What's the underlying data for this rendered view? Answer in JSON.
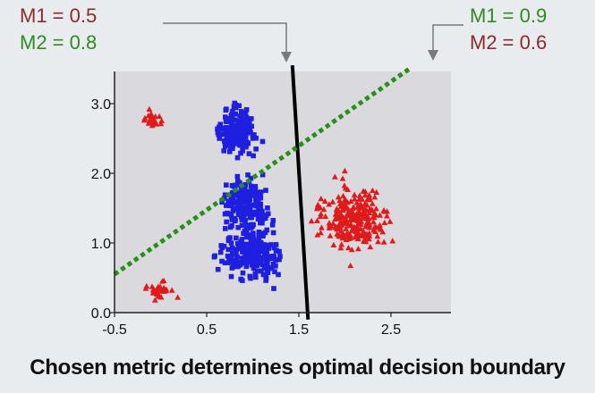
{
  "caption": "Chosen metric determines optimal decision boundary",
  "annotations": {
    "left_box": {
      "m1": "M1 = 0.5",
      "m2": "M2 = 0.8"
    },
    "right_box": {
      "m1": "M1 = 0.9",
      "m2": "M2 = 0.6"
    }
  },
  "colors": {
    "green_text": "#2e8b1f",
    "red_text": "#8b2a2a",
    "class_a": "#1f1fe0",
    "class_b": "#e01a1a",
    "boundary_solid": "#000000",
    "boundary_dotted": "#2a8f1a",
    "plot_bg": "#d9d9de"
  },
  "chart_data": {
    "type": "scatter",
    "title": "",
    "xlabel": "",
    "ylabel": "",
    "xlim": [
      -0.5,
      3.0
    ],
    "ylim": [
      0.0,
      3.3
    ],
    "x_ticks": [
      -0.5,
      0.5,
      1.5,
      2.5
    ],
    "x_tick_labels": [
      "-0.5",
      "0.5",
      "1.5",
      "2.5"
    ],
    "y_ticks": [
      0.0,
      1.0,
      2.0,
      3.0
    ],
    "y_tick_labels": [
      "0.0",
      "1.0",
      "2.0",
      "3.0"
    ],
    "grid": false,
    "series": [
      {
        "marker": "square",
        "color": "#1f1fe0",
        "clusters": [
          {
            "center": [
              0.83,
              2.6
            ],
            "spread": [
              0.17,
              0.25
            ],
            "count": 180
          },
          {
            "center": [
              0.92,
              1.55
            ],
            "spread": [
              0.2,
              0.3
            ],
            "count": 200
          },
          {
            "center": [
              1.0,
              0.85
            ],
            "spread": [
              0.26,
              0.27
            ],
            "count": 230
          }
        ]
      },
      {
        "marker": "triangle",
        "color": "#e01a1a",
        "clusters": [
          {
            "center": [
              -0.1,
              2.75
            ],
            "spread": [
              0.1,
              0.1
            ],
            "count": 26
          },
          {
            "center": [
              0.0,
              0.3
            ],
            "spread": [
              0.1,
              0.1
            ],
            "count": 30
          },
          {
            "center": [
              2.1,
              1.35
            ],
            "spread": [
              0.3,
              0.38
            ],
            "count": 260
          }
        ]
      }
    ],
    "boundaries": [
      {
        "style": "solid",
        "color": "#000000",
        "x": [
          1.43,
          1.6
        ],
        "y": [
          3.55,
          -0.1
        ]
      },
      {
        "style": "dotted",
        "color": "#2a8f1a",
        "x": [
          -0.5,
          2.7
        ],
        "y": [
          0.55,
          3.5
        ]
      }
    ]
  }
}
